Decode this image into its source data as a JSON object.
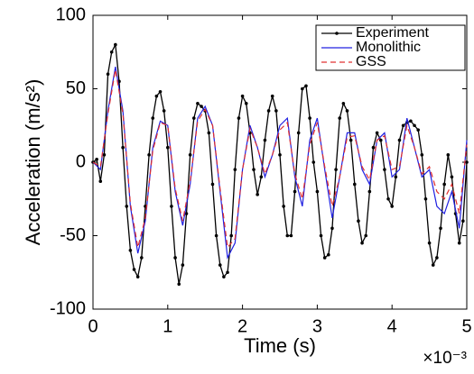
{
  "chart_data": {
    "type": "line",
    "x_label": "Time (s)",
    "y_label": "Acceleration (m/s²)",
    "x_multiplier": "×10⁻³",
    "xlim": [
      0,
      5
    ],
    "xticks": [
      0,
      1,
      2,
      3,
      4,
      5
    ],
    "ylim": [
      -100,
      100
    ],
    "yticks": [
      -100,
      -50,
      0,
      50,
      100
    ],
    "grid": false,
    "legend": "upper right",
    "series": [
      {
        "name": "Experiment",
        "color": "#000000",
        "style": "solid",
        "markers": true,
        "x": [
          0,
          0.05,
          0.1,
          0.15,
          0.2,
          0.25,
          0.3,
          0.35,
          0.4,
          0.45,
          0.5,
          0.55,
          0.6,
          0.65,
          0.7,
          0.75,
          0.8,
          0.85,
          0.9,
          0.95,
          1,
          1.05,
          1.1,
          1.15,
          1.2,
          1.25,
          1.3,
          1.35,
          1.4,
          1.45,
          1.5,
          1.55,
          1.6,
          1.65,
          1.7,
          1.75,
          1.8,
          1.85,
          1.9,
          1.95,
          2,
          2.05,
          2.1,
          2.15,
          2.2,
          2.25,
          2.3,
          2.35,
          2.4,
          2.45,
          2.5,
          2.55,
          2.6,
          2.65,
          2.7,
          2.75,
          2.8,
          2.85,
          2.9,
          2.95,
          3,
          3.05,
          3.1,
          3.15,
          3.2,
          3.25,
          3.3,
          3.35,
          3.4,
          3.45,
          3.5,
          3.55,
          3.6,
          3.65,
          3.7,
          3.75,
          3.8,
          3.85,
          3.9,
          3.95,
          4,
          4.05,
          4.1,
          4.15,
          4.2,
          4.25,
          4.3,
          4.35,
          4.4,
          4.45,
          4.5,
          4.55,
          4.6,
          4.65,
          4.7,
          4.75,
          4.8,
          4.85,
          4.9,
          4.95,
          5
        ],
        "values": [
          0,
          2,
          -13,
          5,
          60,
          75,
          80,
          55,
          10,
          -30,
          -60,
          -73,
          -78,
          -65,
          -30,
          5,
          30,
          45,
          48,
          35,
          10,
          -30,
          -65,
          -83,
          -70,
          -35,
          5,
          30,
          40,
          38,
          35,
          20,
          -15,
          -50,
          -70,
          -78,
          -75,
          -50,
          -5,
          30,
          45,
          40,
          20,
          -5,
          -22,
          -10,
          15,
          35,
          45,
          35,
          5,
          -30,
          -50,
          -50,
          -20,
          20,
          50,
          52,
          30,
          0,
          -20,
          -50,
          -65,
          -63,
          -45,
          -5,
          30,
          40,
          35,
          15,
          -15,
          -40,
          -55,
          -50,
          -20,
          10,
          20,
          15,
          -5,
          -25,
          -30,
          -10,
          15,
          25,
          27,
          28,
          25,
          22,
          5,
          -25,
          -55,
          -70,
          -65,
          -45,
          -15,
          5,
          -10,
          -35,
          -55,
          -40,
          0
        ]
      },
      {
        "name": "Monolithic",
        "color": "#2020e0",
        "style": "solid",
        "markers": false,
        "x": [
          0,
          0.1,
          0.2,
          0.3,
          0.4,
          0.5,
          0.6,
          0.7,
          0.8,
          0.9,
          1,
          1.1,
          1.2,
          1.3,
          1.4,
          1.5,
          1.6,
          1.7,
          1.8,
          1.9,
          2,
          2.1,
          2.2,
          2.3,
          2.4,
          2.5,
          2.6,
          2.7,
          2.8,
          2.9,
          3,
          3.1,
          3.2,
          3.3,
          3.4,
          3.5,
          3.6,
          3.7,
          3.8,
          3.9,
          4,
          4.1,
          4.2,
          4.3,
          4.4,
          4.5,
          4.6,
          4.7,
          4.8,
          4.9,
          5
        ],
        "values": [
          0,
          -5,
          35,
          65,
          35,
          -30,
          -62,
          -40,
          10,
          28,
          25,
          -20,
          -43,
          -15,
          30,
          38,
          25,
          -20,
          -65,
          -55,
          -5,
          25,
          10,
          -10,
          5,
          25,
          30,
          -10,
          -30,
          15,
          30,
          -5,
          -38,
          -10,
          20,
          20,
          -5,
          -15,
          15,
          20,
          -10,
          -5,
          30,
          10,
          -10,
          -5,
          -30,
          -35,
          -20,
          -45,
          15
        ]
      },
      {
        "name": "GSS",
        "color": "#e03030",
        "style": "dashed",
        "markers": false,
        "x": [
          0,
          0.1,
          0.2,
          0.3,
          0.4,
          0.5,
          0.6,
          0.7,
          0.8,
          0.9,
          1,
          1.1,
          1.2,
          1.3,
          1.4,
          1.5,
          1.6,
          1.7,
          1.8,
          1.9,
          2,
          2.1,
          2.2,
          2.3,
          2.4,
          2.5,
          2.6,
          2.7,
          2.8,
          2.9,
          3,
          3.1,
          3.2,
          3.3,
          3.4,
          3.5,
          3.6,
          3.7,
          3.8,
          3.9,
          4,
          4.1,
          4.2,
          4.3,
          4.4,
          4.5,
          4.6,
          4.7,
          4.8,
          4.9,
          5
        ],
        "values": [
          0,
          -3,
          33,
          63,
          33,
          -28,
          -58,
          -38,
          8,
          27,
          25,
          -18,
          -40,
          -13,
          28,
          36,
          25,
          -18,
          -58,
          -52,
          -5,
          23,
          10,
          -8,
          5,
          22,
          27,
          -8,
          -25,
          12,
          27,
          -3,
          -30,
          -10,
          17,
          18,
          -3,
          -12,
          15,
          18,
          -5,
          -3,
          25,
          10,
          -8,
          -3,
          -20,
          -25,
          -15,
          -35,
          12
        ]
      }
    ]
  }
}
